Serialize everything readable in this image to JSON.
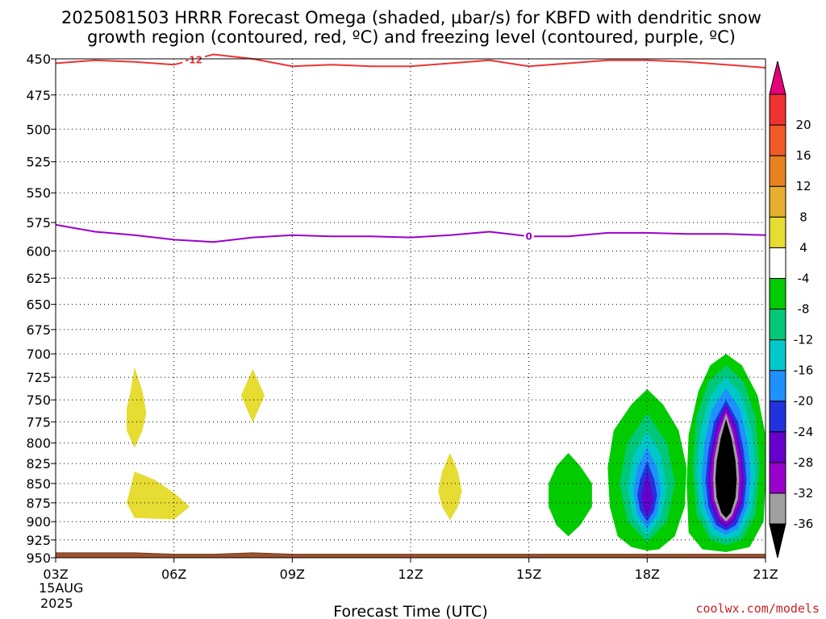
{
  "title_line1": "2025081503 HRRR Forecast Omega (shaded, µbar/s) for KBFD with dendritic snow",
  "title_line2": "growth region (contoured, red, ºC) and freezing level (contoured, purple, ºC)",
  "xlabel": "Forecast Time (UTC)",
  "credit": "coolwx.com/models",
  "date_day": "15AUG",
  "date_year": "2025",
  "chart_data": {
    "type": "heatmap",
    "x_hours": [
      3,
      21
    ],
    "x_ticks": [
      {
        "h": 3,
        "label": "03Z"
      },
      {
        "h": 6,
        "label": "06Z"
      },
      {
        "h": 9,
        "label": "09Z"
      },
      {
        "h": 12,
        "label": "12Z"
      },
      {
        "h": 15,
        "label": "15Z"
      },
      {
        "h": 18,
        "label": "18Z"
      },
      {
        "h": 21,
        "label": "21Z"
      }
    ],
    "y_range_hpa": [
      450,
      950
    ],
    "y_ticks": [
      450,
      475,
      500,
      525,
      550,
      575,
      600,
      625,
      650,
      675,
      700,
      725,
      750,
      775,
      800,
      825,
      850,
      875,
      900,
      925,
      950
    ],
    "y_scale": "log",
    "grid": true,
    "colorbar": {
      "colors": [
        "#000000",
        "#a0a0a0",
        "#9a00cc",
        "#6600cc",
        "#2233dd",
        "#1e90ff",
        "#00c8c8",
        "#00c878",
        "#00cc00",
        "#ffffff",
        "#e6dc32",
        "#e6af2d",
        "#e6821e",
        "#f05a28",
        "#f03232",
        "#e6007a"
      ],
      "labels": [
        "-36",
        "-32",
        "-28",
        "-24",
        "-20",
        "-16",
        "-12",
        "-8",
        "-4",
        "4",
        "8",
        "12",
        "16",
        "20"
      ]
    },
    "contours": [
      {
        "color": "#ee3333",
        "label": "-12",
        "label_h": 6.5,
        "points": [
          [
            3,
            453
          ],
          [
            4,
            451
          ],
          [
            5,
            452
          ],
          [
            6,
            454
          ],
          [
            7,
            447
          ],
          [
            8,
            450
          ],
          [
            9,
            455
          ],
          [
            10,
            454
          ],
          [
            11,
            455
          ],
          [
            12,
            455
          ],
          [
            13,
            453
          ],
          [
            14,
            451
          ],
          [
            15,
            455
          ],
          [
            16,
            453
          ],
          [
            17,
            451
          ],
          [
            18,
            451
          ],
          [
            19,
            452
          ],
          [
            20,
            454
          ],
          [
            21,
            456
          ]
        ]
      },
      {
        "color": "#9900cc",
        "label": "0",
        "label_h": 15.0,
        "points": [
          [
            3,
            577
          ],
          [
            4,
            583
          ],
          [
            5,
            586
          ],
          [
            6,
            590
          ],
          [
            7,
            592
          ],
          [
            8,
            588
          ],
          [
            9,
            586
          ],
          [
            10,
            587
          ],
          [
            11,
            587
          ],
          [
            12,
            588
          ],
          [
            13,
            586
          ],
          [
            14,
            583
          ],
          [
            15,
            587
          ],
          [
            16,
            587
          ],
          [
            17,
            584
          ],
          [
            18,
            584
          ],
          [
            19,
            585
          ],
          [
            20,
            585
          ],
          [
            21,
            586
          ]
        ]
      }
    ],
    "regions": [
      {
        "color": "#e6dc32",
        "points": [
          [
            5.0,
            714
          ],
          [
            5.2,
            740
          ],
          [
            5.3,
            765
          ],
          [
            5.2,
            785
          ],
          [
            5.0,
            806
          ],
          [
            4.8,
            785
          ],
          [
            4.8,
            760
          ],
          [
            4.9,
            740
          ]
        ]
      },
      {
        "color": "#e6dc32",
        "points": [
          [
            5.0,
            835
          ],
          [
            5.5,
            845
          ],
          [
            6.0,
            862
          ],
          [
            6.4,
            880
          ],
          [
            6.0,
            897
          ],
          [
            5.0,
            895
          ],
          [
            4.8,
            875
          ],
          [
            4.9,
            855
          ]
        ]
      },
      {
        "color": "#e6dc32",
        "points": [
          [
            8.0,
            716
          ],
          [
            8.3,
            745
          ],
          [
            8.0,
            776
          ],
          [
            7.7,
            745
          ]
        ]
      },
      {
        "color": "#e6dc32",
        "points": [
          [
            13.0,
            812
          ],
          [
            13.2,
            835
          ],
          [
            13.3,
            860
          ],
          [
            13.2,
            880
          ],
          [
            13.0,
            898
          ],
          [
            12.8,
            880
          ],
          [
            12.7,
            860
          ],
          [
            12.8,
            835
          ]
        ]
      },
      {
        "color": "#00cc00",
        "points": [
          [
            16.0,
            812
          ],
          [
            16.3,
            828
          ],
          [
            16.6,
            850
          ],
          [
            16.6,
            880
          ],
          [
            16.3,
            905
          ],
          [
            16.0,
            920
          ],
          [
            15.7,
            905
          ],
          [
            15.5,
            880
          ],
          [
            15.5,
            850
          ],
          [
            15.7,
            828
          ]
        ]
      },
      {
        "color": "#00cc00",
        "points": [
          [
            18.0,
            738
          ],
          [
            18.4,
            755
          ],
          [
            18.8,
            785
          ],
          [
            19.0,
            830
          ],
          [
            18.95,
            880
          ],
          [
            18.7,
            920
          ],
          [
            18.3,
            938
          ],
          [
            18.0,
            940
          ],
          [
            17.6,
            935
          ],
          [
            17.25,
            920
          ],
          [
            17.05,
            880
          ],
          [
            17.0,
            830
          ],
          [
            17.15,
            785
          ],
          [
            17.6,
            755
          ]
        ]
      },
      {
        "color": "#00c878",
        "points": [
          [
            18.0,
            765
          ],
          [
            18.5,
            800
          ],
          [
            18.7,
            850
          ],
          [
            18.5,
            900
          ],
          [
            18.0,
            928
          ],
          [
            17.5,
            900
          ],
          [
            17.3,
            850
          ],
          [
            17.5,
            800
          ]
        ]
      },
      {
        "color": "#00c8c8",
        "points": [
          [
            18.0,
            785
          ],
          [
            18.35,
            815
          ],
          [
            18.5,
            855
          ],
          [
            18.35,
            895
          ],
          [
            18.0,
            920
          ],
          [
            17.65,
            895
          ],
          [
            17.5,
            855
          ],
          [
            17.65,
            815
          ]
        ]
      },
      {
        "color": "#1e90ff",
        "points": [
          [
            18.0,
            805
          ],
          [
            18.25,
            830
          ],
          [
            18.35,
            860
          ],
          [
            18.25,
            890
          ],
          [
            18.0,
            910
          ],
          [
            17.75,
            890
          ],
          [
            17.65,
            860
          ],
          [
            17.75,
            830
          ]
        ]
      },
      {
        "color": "#2233dd",
        "points": [
          [
            18.0,
            822
          ],
          [
            18.18,
            845
          ],
          [
            18.25,
            865
          ],
          [
            18.18,
            885
          ],
          [
            18.0,
            900
          ],
          [
            17.82,
            885
          ],
          [
            17.75,
            865
          ],
          [
            17.82,
            845
          ]
        ]
      },
      {
        "color": "#6600cc",
        "points": [
          [
            18.0,
            835
          ],
          [
            18.1,
            855
          ],
          [
            18.15,
            868
          ],
          [
            18.1,
            882
          ],
          [
            18.0,
            893
          ],
          [
            17.9,
            882
          ],
          [
            17.85,
            868
          ],
          [
            17.9,
            855
          ]
        ]
      },
      {
        "color": "#00cc00",
        "points": [
          [
            20.0,
            700
          ],
          [
            20.4,
            712
          ],
          [
            20.8,
            745
          ],
          [
            21.0,
            790
          ],
          [
            21.0,
            850
          ],
          [
            20.95,
            900
          ],
          [
            20.6,
            935
          ],
          [
            20.0,
            942
          ],
          [
            19.4,
            938
          ],
          [
            19.05,
            915
          ],
          [
            19.0,
            850
          ],
          [
            19.05,
            790
          ],
          [
            19.3,
            740
          ],
          [
            19.6,
            712
          ]
        ]
      },
      {
        "color": "#00c878",
        "points": [
          [
            20.0,
            712
          ],
          [
            20.45,
            730
          ],
          [
            20.75,
            770
          ],
          [
            20.85,
            830
          ],
          [
            20.75,
            890
          ],
          [
            20.4,
            925
          ],
          [
            20.0,
            932
          ],
          [
            19.6,
            925
          ],
          [
            19.25,
            890
          ],
          [
            19.15,
            830
          ],
          [
            19.25,
            770
          ],
          [
            19.55,
            730
          ]
        ]
      },
      {
        "color": "#00c8c8",
        "points": [
          [
            20.0,
            724
          ],
          [
            20.4,
            745
          ],
          [
            20.65,
            785
          ],
          [
            20.75,
            835
          ],
          [
            20.65,
            885
          ],
          [
            20.35,
            918
          ],
          [
            20.0,
            925
          ],
          [
            19.65,
            918
          ],
          [
            19.35,
            885
          ],
          [
            19.25,
            835
          ],
          [
            19.35,
            785
          ],
          [
            19.6,
            745
          ]
        ]
      },
      {
        "color": "#1e90ff",
        "points": [
          [
            20.0,
            737
          ],
          [
            20.35,
            760
          ],
          [
            20.55,
            800
          ],
          [
            20.62,
            840
          ],
          [
            20.55,
            880
          ],
          [
            20.3,
            910
          ],
          [
            20.0,
            918
          ],
          [
            19.7,
            910
          ],
          [
            19.45,
            880
          ],
          [
            19.38,
            840
          ],
          [
            19.45,
            800
          ],
          [
            19.65,
            760
          ]
        ]
      },
      {
        "color": "#2233dd",
        "points": [
          [
            20.0,
            750
          ],
          [
            20.3,
            775
          ],
          [
            20.45,
            810
          ],
          [
            20.52,
            845
          ],
          [
            20.45,
            880
          ],
          [
            20.25,
            905
          ],
          [
            20.0,
            912
          ],
          [
            19.75,
            905
          ],
          [
            19.55,
            880
          ],
          [
            19.48,
            845
          ],
          [
            19.55,
            810
          ],
          [
            19.7,
            775
          ]
        ]
      },
      {
        "color": "#6600cc",
        "points": [
          [
            20.0,
            755
          ],
          [
            20.25,
            780
          ],
          [
            20.4,
            815
          ],
          [
            20.45,
            845
          ],
          [
            20.4,
            875
          ],
          [
            20.2,
            900
          ],
          [
            20.0,
            908
          ],
          [
            19.8,
            900
          ],
          [
            19.6,
            875
          ],
          [
            19.55,
            845
          ],
          [
            19.6,
            815
          ],
          [
            19.75,
            780
          ]
        ]
      },
      {
        "color": "#9a00cc",
        "points": [
          [
            20.0,
            760
          ],
          [
            20.22,
            785
          ],
          [
            20.35,
            818
          ],
          [
            20.4,
            845
          ],
          [
            20.35,
            872
          ],
          [
            20.18,
            896
          ],
          [
            20.0,
            903
          ],
          [
            19.82,
            896
          ],
          [
            19.65,
            872
          ],
          [
            19.6,
            845
          ],
          [
            19.65,
            818
          ],
          [
            19.78,
            785
          ]
        ]
      },
      {
        "color": "#a0a0a0",
        "points": [
          [
            20.0,
            765
          ],
          [
            20.18,
            790
          ],
          [
            20.3,
            820
          ],
          [
            20.33,
            845
          ],
          [
            20.3,
            870
          ],
          [
            20.15,
            892
          ],
          [
            20.0,
            900
          ],
          [
            19.85,
            892
          ],
          [
            19.7,
            870
          ],
          [
            19.67,
            845
          ],
          [
            19.7,
            820
          ],
          [
            19.82,
            790
          ]
        ]
      },
      {
        "color": "#000000",
        "points": [
          [
            20.0,
            772
          ],
          [
            20.14,
            795
          ],
          [
            20.24,
            822
          ],
          [
            20.27,
            845
          ],
          [
            20.24,
            868
          ],
          [
            20.12,
            888
          ],
          [
            20.0,
            895
          ],
          [
            19.88,
            888
          ],
          [
            19.76,
            868
          ],
          [
            19.73,
            845
          ],
          [
            19.76,
            822
          ],
          [
            19.86,
            795
          ]
        ]
      }
    ],
    "terrain": {
      "color": "#a0522d",
      "points": [
        [
          3,
          943
        ],
        [
          5,
          943
        ],
        [
          6,
          945
        ],
        [
          7,
          945
        ],
        [
          7.5,
          944
        ],
        [
          8,
          943
        ],
        [
          8.5,
          944
        ],
        [
          9,
          945
        ],
        [
          21,
          945
        ]
      ]
    }
  }
}
